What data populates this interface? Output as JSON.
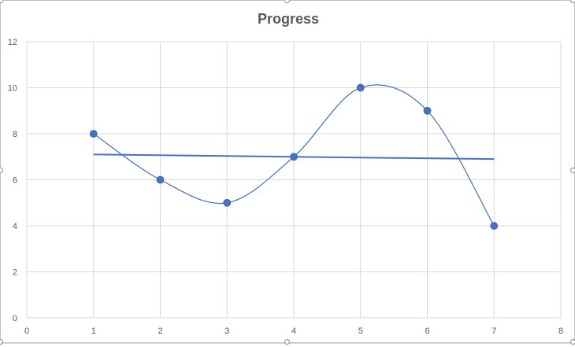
{
  "chart_data": {
    "type": "scatter",
    "title": "Progress",
    "xlabel": "",
    "ylabel": "",
    "xlim": [
      0,
      8
    ],
    "ylim": [
      0,
      12
    ],
    "x_ticks": [
      0,
      1,
      2,
      3,
      4,
      5,
      6,
      7,
      8
    ],
    "y_ticks": [
      0,
      2,
      4,
      6,
      8,
      10,
      12
    ],
    "grid": true,
    "legend": "none",
    "line_style": "smoothed",
    "series": [
      {
        "x": [
          1,
          2,
          3,
          4,
          5,
          6,
          7
        ],
        "y": [
          8,
          6,
          5,
          7,
          10,
          9,
          4
        ],
        "color": "#4472c4"
      }
    ],
    "trendline": {
      "type": "linear",
      "x": [
        1,
        7
      ],
      "y": [
        7.1,
        6.9
      ],
      "color": "#4472c4"
    }
  },
  "colors": {
    "series": "#4472c4",
    "grid": "#d9d9d9",
    "title": "#595959",
    "tick": "#595959"
  }
}
